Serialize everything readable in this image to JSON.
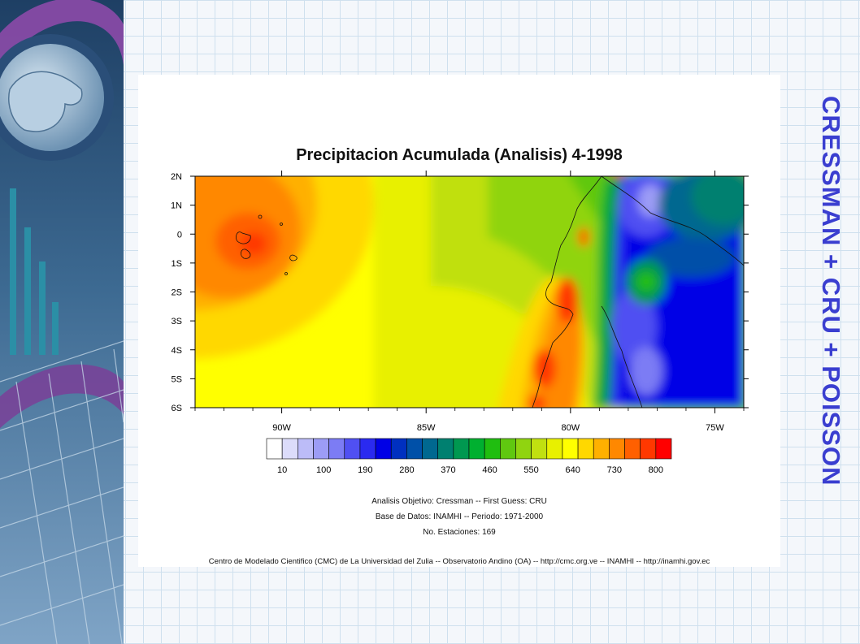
{
  "slide": {
    "title": "CRESSMAN + CRU + POISSON",
    "title_color": "#3a3ed0",
    "background_color": "#f4f7fb",
    "grid_color": "#cfe0ee",
    "left_panel_icons": [
      "hand-icon",
      "keyboard-icon",
      "bar-chart-icon"
    ]
  },
  "map": {
    "title": "Precipitacion Acumulada (Analisis)  4-1998",
    "lat_labels": [
      "2N",
      "1N",
      "0",
      "1S",
      "2S",
      "3S",
      "4S",
      "5S",
      "6S"
    ],
    "lon_labels": [
      "90W",
      "85W",
      "80W",
      "75W"
    ],
    "lat_range": [
      -6,
      2
    ],
    "lon_range": [
      -93,
      -74
    ],
    "colorbar_labels": [
      "10",
      "100",
      "190",
      "280",
      "370",
      "460",
      "550",
      "640",
      "730",
      "800"
    ],
    "colorbar_colors": [
      "#ffffff",
      "#dcdcfa",
      "#bcbcf8",
      "#9c9cf6",
      "#7c7cf4",
      "#5050f2",
      "#2a2af0",
      "#0000e6",
      "#0030c0",
      "#0050a8",
      "#006890",
      "#008070",
      "#009850",
      "#00b030",
      "#20be10",
      "#60c810",
      "#90d410",
      "#c0e010",
      "#e8f000",
      "#ffff00",
      "#ffd800",
      "#ffb000",
      "#ff8800",
      "#ff6000",
      "#ff3800",
      "#ff0000"
    ]
  },
  "notes": {
    "line1": "Analisis Objetivo: Cressman  --  First Guess: CRU",
    "line2": "Base de Datos: INAMHI -- Periodo: 1971-2000",
    "line3": "No. Estaciones: 169",
    "footer": "Centro de Modelado Cientifico (CMC) de La Universidad del Zulia -- Observatorio Andino (OA) -- http://cmc.org.ve -- INAMHI -- http://inamhi.gov.ec"
  }
}
